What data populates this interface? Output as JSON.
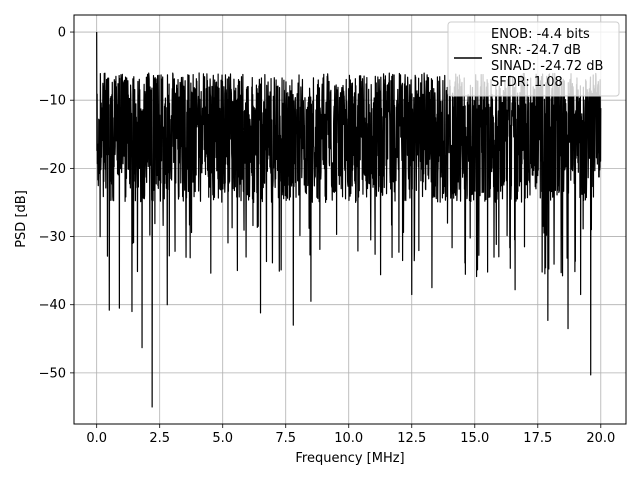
{
  "chart_data": {
    "type": "line",
    "title": "",
    "xlabel": "Frequency [MHz]",
    "ylabel": "PSD [dB]",
    "xlim": [
      -0.9,
      21.0
    ],
    "ylim": [
      -57.5,
      2.5
    ],
    "x_ticks": [
      0.0,
      2.5,
      5.0,
      7.5,
      10.0,
      12.5,
      15.0,
      17.5,
      20.0
    ],
    "x_tick_labels": [
      "0.0",
      "2.5",
      "5.0",
      "7.5",
      "10.0",
      "12.5",
      "15.0",
      "17.5",
      "20.0"
    ],
    "y_ticks": [
      0,
      -10,
      -20,
      -30,
      -40,
      -50
    ],
    "y_tick_labels": [
      "0",
      "−10",
      "−20",
      "−30",
      "−40",
      "−50"
    ],
    "grid": true,
    "legend_position": "top-right",
    "legend_lines": [
      "ENOB: -4.4 bits",
      "SNR: -24.7 dB",
      "SINAD: -24.72 dB",
      "SFDR: 1.08"
    ],
    "series": [
      {
        "color": "#000000",
        "x_range": [
          0.0,
          20.0
        ],
        "envelope": {
          "typical_band_db": [
            -25,
            -6
          ],
          "peak": {
            "x": 0.0,
            "y": 0.0
          },
          "deep_notches": [
            {
              "x": 2.2,
              "y": -55
            },
            {
              "x": 19.6,
              "y": -50.3
            },
            {
              "x": 1.8,
              "y": -46.3
            },
            {
              "x": 17.9,
              "y": -42.3
            },
            {
              "x": 7.8,
              "y": -43.0
            },
            {
              "x": 18.7,
              "y": -43.5
            },
            {
              "x": 0.9,
              "y": -40.5
            },
            {
              "x": 0.5,
              "y": -40.8
            },
            {
              "x": 6.5,
              "y": -41.2
            },
            {
              "x": 8.5,
              "y": -39.5
            },
            {
              "x": 1.4,
              "y": -41.0
            },
            {
              "x": 2.8,
              "y": -40.0
            },
            {
              "x": 12.5,
              "y": -38.5
            },
            {
              "x": 16.6,
              "y": -37.8
            },
            {
              "x": 19.2,
              "y": -38.5
            },
            {
              "x": 13.3,
              "y": -37.5
            }
          ]
        }
      }
    ]
  }
}
